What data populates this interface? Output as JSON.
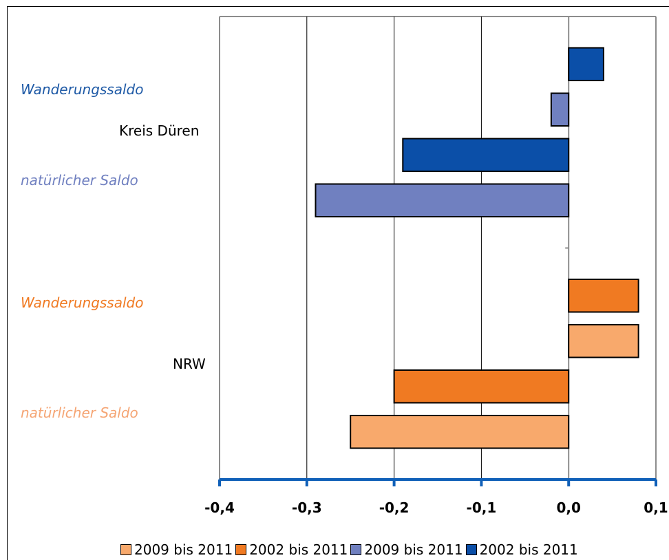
{
  "chart_data": {
    "type": "bar",
    "orientation": "horizontal",
    "categories": [
      "Kreis Düren",
      "NRW"
    ],
    "series_labels": [
      {
        "text": "Wanderungssaldo",
        "color": "#1f5aa6"
      },
      {
        "text": "natürlicher Saldo",
        "color": "#7080c0"
      },
      {
        "text": "Wanderungssaldo",
        "color": "#f07a22"
      },
      {
        "text": "natürlicher Saldo",
        "color": "#f5a574"
      }
    ],
    "bars": [
      {
        "category": "Kreis Düren",
        "series": "Wanderungssaldo 2002 bis 2011",
        "value": 0.04,
        "color": "#0b4fa8"
      },
      {
        "category": "Kreis Düren",
        "series": "Wanderungssaldo 2009 bis 2011",
        "value": -0.02,
        "color": "#7080c0"
      },
      {
        "category": "Kreis Düren",
        "series": "natürlicher Saldo 2002 bis 2011",
        "value": -0.19,
        "color": "#0b4fa8"
      },
      {
        "category": "Kreis Düren",
        "series": "natürlicher Saldo 2009 bis 2011",
        "value": -0.29,
        "color": "#7080c0"
      },
      {
        "category": "NRW",
        "series": "Wanderungssaldo 2002 bis 2011",
        "value": 0.08,
        "color": "#f07a22"
      },
      {
        "category": "NRW",
        "series": "Wanderungssaldo 2009 bis 2011",
        "value": 0.08,
        "color": "#f8a96c"
      },
      {
        "category": "NRW",
        "series": "natürlicher Saldo 2002 bis 2011",
        "value": -0.2,
        "color": "#f07a22"
      },
      {
        "category": "NRW",
        "series": "natürlicher Saldo 2009 bis 2011",
        "value": -0.25,
        "color": "#f8a96c"
      }
    ],
    "xlim": [
      -0.4,
      0.1
    ],
    "x_ticks": [
      -0.4,
      -0.3,
      -0.2,
      -0.1,
      0.0,
      0.1
    ],
    "x_tick_labels": [
      "-0,4",
      "-0,3",
      "-0,2",
      "-0,1",
      "0,0",
      "0,1"
    ],
    "grid": true,
    "legend_position": "bottom",
    "legend": [
      {
        "label": "2009 bis 2011",
        "color": "#f8a96c"
      },
      {
        "label": "2002 bis 2011",
        "color": "#f07a22"
      },
      {
        "label": "2009 bis 2011",
        "color": "#7080c0"
      },
      {
        "label": "2002 bis 2011",
        "color": "#0b4fa8"
      }
    ]
  }
}
